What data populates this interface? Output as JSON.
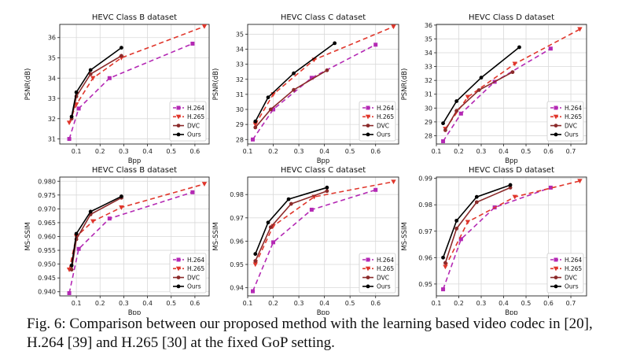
{
  "caption": "Fig. 6: Comparison between our proposed method with the learning based video codec in [20], H.264 [39] and H.265 [30] at the fixed GoP setting.",
  "colors": {
    "H.264": "#b429b4",
    "H.265": "#e0362b",
    "DVC": "#8b2a2a",
    "Ours": "#000000"
  },
  "chart_data": [
    {
      "type": "line",
      "title": "HEVC Class B dataset",
      "xlabel": "Bpp",
      "ylabel": "PSNR(dB)",
      "xlim": [
        0.03,
        0.66
      ],
      "ylim": [
        30.75,
        36.65
      ],
      "xticks": [
        "0.1",
        "0.2",
        "0.3",
        "0.4",
        "0.5",
        "0.6"
      ],
      "xtick_values": [
        0.1,
        0.2,
        0.3,
        0.4,
        0.5,
        0.6
      ],
      "yticks": [
        "31",
        "32",
        "33",
        "34",
        "35",
        "36"
      ],
      "ytick_values": [
        31,
        32,
        33,
        34,
        35,
        36
      ],
      "grid": true,
      "legend": "bottom-right",
      "series": [
        {
          "name": "H.264",
          "x": [
            0.07,
            0.11,
            0.24,
            0.59
          ],
          "y": [
            31.0,
            32.5,
            34.0,
            35.7
          ]
        },
        {
          "name": "H.265",
          "x": [
            0.07,
            0.1,
            0.17,
            0.29,
            0.64
          ],
          "y": [
            31.8,
            32.7,
            34.0,
            35.0,
            36.55
          ]
        },
        {
          "name": "DVC",
          "x": [
            0.08,
            0.1,
            0.16,
            0.29
          ],
          "y": [
            32.0,
            33.1,
            34.2,
            35.1
          ]
        },
        {
          "name": "Ours",
          "x": [
            0.08,
            0.1,
            0.16,
            0.29
          ],
          "y": [
            32.1,
            33.3,
            34.4,
            35.5
          ]
        }
      ]
    },
    {
      "type": "line",
      "title": "HEVC Class C dataset",
      "xlabel": "Bpp",
      "ylabel": "PSNR(dB)",
      "xlim": [
        0.1,
        0.69
      ],
      "ylim": [
        27.7,
        35.65
      ],
      "xticks": [
        "0.1",
        "0.2",
        "0.3",
        "0.4",
        "0.5",
        "0.6"
      ],
      "xtick_values": [
        0.1,
        0.2,
        0.3,
        0.4,
        0.5,
        0.6
      ],
      "yticks": [
        "28",
        "29",
        "30",
        "31",
        "32",
        "33",
        "34",
        "35"
      ],
      "ytick_values": [
        28,
        29,
        30,
        31,
        32,
        33,
        34,
        35
      ],
      "grid": true,
      "legend": "bottom-right",
      "series": [
        {
          "name": "H.264",
          "x": [
            0.12,
            0.2,
            0.35,
            0.6
          ],
          "y": [
            28.0,
            30.0,
            32.1,
            34.3
          ]
        },
        {
          "name": "H.265",
          "x": [
            0.13,
            0.2,
            0.36,
            0.67
          ],
          "y": [
            29.0,
            31.0,
            33.3,
            35.5
          ]
        },
        {
          "name": "DVC",
          "x": [
            0.13,
            0.19,
            0.28,
            0.41
          ],
          "y": [
            28.8,
            30.0,
            31.3,
            32.6
          ]
        },
        {
          "name": "Ours",
          "x": [
            0.13,
            0.18,
            0.28,
            0.44
          ],
          "y": [
            29.2,
            30.8,
            32.4,
            34.4
          ]
        }
      ]
    },
    {
      "type": "line",
      "title": "HEVC Class D dataset",
      "xlabel": "Bpp",
      "ylabel": "PSNR(dB)",
      "xlim": [
        0.1,
        0.77
      ],
      "ylim": [
        27.4,
        36.05
      ],
      "xticks": [
        "0.1",
        "0.2",
        "0.3",
        "0.4",
        "0.5",
        "0.6",
        "0.7"
      ],
      "xtick_values": [
        0.1,
        0.2,
        0.3,
        0.4,
        0.5,
        0.6,
        0.7
      ],
      "yticks": [
        "28",
        "29",
        "30",
        "31",
        "32",
        "33",
        "34",
        "35",
        "36"
      ],
      "ytick_values": [
        28,
        29,
        30,
        31,
        32,
        33,
        34,
        35,
        36
      ],
      "grid": true,
      "legend": "bottom-right",
      "series": [
        {
          "name": "H.264",
          "x": [
            0.13,
            0.21,
            0.36,
            0.61
          ],
          "y": [
            27.6,
            29.6,
            31.9,
            34.3
          ]
        },
        {
          "name": "H.265",
          "x": [
            0.14,
            0.24,
            0.45,
            0.74
          ],
          "y": [
            28.5,
            30.8,
            33.2,
            35.7
          ]
        },
        {
          "name": "DVC",
          "x": [
            0.14,
            0.19,
            0.29,
            0.44
          ],
          "y": [
            28.4,
            29.8,
            31.3,
            32.6
          ]
        },
        {
          "name": "Ours",
          "x": [
            0.13,
            0.19,
            0.3,
            0.47
          ],
          "y": [
            28.9,
            30.5,
            32.2,
            34.4
          ]
        }
      ]
    },
    {
      "type": "line",
      "title": "HEVC Class B dataset",
      "xlabel": "Bpp",
      "ylabel": "MS-SSIM",
      "xlim": [
        0.03,
        0.66
      ],
      "ylim": [
        0.9385,
        0.9815
      ],
      "xticks": [
        "0.1",
        "0.2",
        "0.3",
        "0.4",
        "0.5",
        "0.6"
      ],
      "xtick_values": [
        0.1,
        0.2,
        0.3,
        0.4,
        0.5,
        0.6
      ],
      "yticks": [
        "0.940",
        "0.945",
        "0.950",
        "0.955",
        "0.960",
        "0.965",
        "0.970",
        "0.975",
        "0.980"
      ],
      "ytick_values": [
        0.94,
        0.945,
        0.95,
        0.955,
        0.96,
        0.965,
        0.97,
        0.975,
        0.98
      ],
      "grid": true,
      "legend": "bottom-right",
      "series": [
        {
          "name": "H.264",
          "x": [
            0.07,
            0.11,
            0.24,
            0.59
          ],
          "y": [
            0.9395,
            0.9555,
            0.9665,
            0.976
          ]
        },
        {
          "name": "H.265",
          "x": [
            0.07,
            0.1,
            0.17,
            0.29,
            0.64
          ],
          "y": [
            0.948,
            0.96,
            0.9655,
            0.9705,
            0.979
          ]
        },
        {
          "name": "DVC",
          "x": [
            0.08,
            0.1,
            0.16,
            0.29
          ],
          "y": [
            0.948,
            0.959,
            0.968,
            0.974
          ]
        },
        {
          "name": "Ours",
          "x": [
            0.08,
            0.1,
            0.16,
            0.29
          ],
          "y": [
            0.9495,
            0.961,
            0.969,
            0.9745
          ]
        }
      ]
    },
    {
      "type": "line",
      "title": "HEVC Class C dataset",
      "xlabel": "Bpp",
      "ylabel": "MS-SSIM",
      "xlim": [
        0.1,
        0.69
      ],
      "ylim": [
        0.9365,
        0.9875
      ],
      "xticks": [
        "0.1",
        "0.2",
        "0.3",
        "0.4",
        "0.5",
        "0.6"
      ],
      "xtick_values": [
        0.1,
        0.2,
        0.3,
        0.4,
        0.5,
        0.6
      ],
      "yticks": [
        "0.94",
        "0.95",
        "0.96",
        "0.97",
        "0.98"
      ],
      "ytick_values": [
        0.94,
        0.95,
        0.96,
        0.97,
        0.98
      ],
      "grid": true,
      "legend": "bottom-right",
      "series": [
        {
          "name": "H.264",
          "x": [
            0.12,
            0.2,
            0.35,
            0.6
          ],
          "y": [
            0.9385,
            0.9595,
            0.9735,
            0.982
          ]
        },
        {
          "name": "H.265",
          "x": [
            0.13,
            0.2,
            0.36,
            0.67
          ],
          "y": [
            0.95,
            0.9665,
            0.979,
            0.9855
          ]
        },
        {
          "name": "DVC",
          "x": [
            0.13,
            0.19,
            0.27,
            0.41
          ],
          "y": [
            0.9515,
            0.966,
            0.976,
            0.9815
          ]
        },
        {
          "name": "Ours",
          "x": [
            0.13,
            0.18,
            0.26,
            0.41
          ],
          "y": [
            0.9545,
            0.968,
            0.978,
            0.983
          ]
        }
      ]
    },
    {
      "type": "line",
      "title": "HEVC Class D dataset",
      "xlabel": "Bpp",
      "ylabel": "MS-SSIM",
      "xlim": [
        0.1,
        0.77
      ],
      "ylim": [
        0.9455,
        0.9905
      ],
      "xticks": [
        "0.1",
        "0.2",
        "0.3",
        "0.4",
        "0.5",
        "0.6",
        "0.7"
      ],
      "xtick_values": [
        0.1,
        0.2,
        0.3,
        0.4,
        0.5,
        0.6,
        0.7
      ],
      "yticks": [
        "0.95",
        "0.96",
        "0.97",
        "0.98",
        "0.99"
      ],
      "ytick_values": [
        0.95,
        0.96,
        0.97,
        0.98,
        0.99
      ],
      "grid": true,
      "legend": "bottom-right",
      "series": [
        {
          "name": "H.264",
          "x": [
            0.13,
            0.21,
            0.36,
            0.61
          ],
          "y": [
            0.948,
            0.967,
            0.979,
            0.9865
          ]
        },
        {
          "name": "H.265",
          "x": [
            0.14,
            0.24,
            0.45,
            0.74
          ],
          "y": [
            0.9565,
            0.9735,
            0.983,
            0.989
          ]
        },
        {
          "name": "DVC",
          "x": [
            0.14,
            0.19,
            0.28,
            0.43
          ],
          "y": [
            0.958,
            0.971,
            0.981,
            0.9865
          ]
        },
        {
          "name": "Ours",
          "x": [
            0.13,
            0.19,
            0.28,
            0.43
          ],
          "y": [
            0.96,
            0.974,
            0.983,
            0.9875
          ]
        }
      ]
    }
  ]
}
